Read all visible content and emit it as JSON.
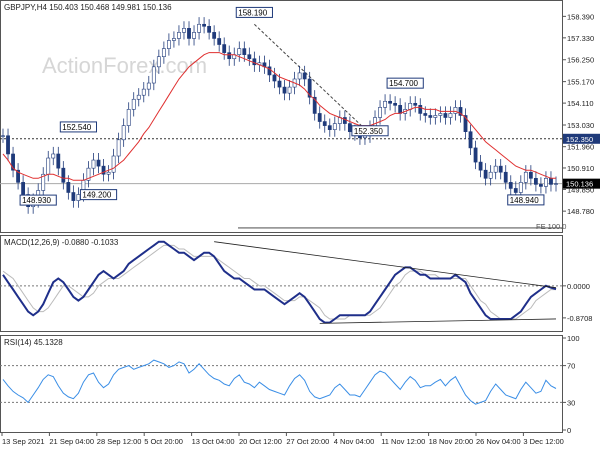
{
  "chart_data": {
    "type": "line",
    "watermark": "ActionForex.com",
    "x_labels": [
      "13 Sep 2021",
      "21 Sep 04:00",
      "28 Sep 12:00",
      "5 Oct 20:00",
      "13 Oct 04:00",
      "20 Oct 12:00",
      "27 Oct 20:00",
      "4 Nov 04:00",
      "11 Nov 12:00",
      "18 Nov 20:00",
      "26 Nov 04:00",
      "3 Dec 12:00"
    ],
    "price": {
      "header": "GBPJPY,H4  150.403 150.468 149.981 150.136",
      "ylim": [
        147.8,
        159.0
      ],
      "yticks": [
        "158.390",
        "157.330",
        "156.250",
        "155.170",
        "154.110",
        "153.030",
        "151.960",
        "150.910",
        "149.850",
        "148.780"
      ],
      "current_label": "150.136",
      "level_label": "152.350",
      "level_value": 152.35,
      "fe_label": "FE 100.0",
      "fe_value": 147.95,
      "annotations": [
        {
          "text": "158.190",
          "x": 50,
          "y": 158.19
        },
        {
          "text": "152.540",
          "x": 15,
          "y": 152.54
        },
        {
          "text": "148.930",
          "x": 7,
          "y": 148.93
        },
        {
          "text": "149.200",
          "x": 19,
          "y": 149.2
        },
        {
          "text": "154.700",
          "x": 80,
          "y": 154.7
        },
        {
          "text": "152.350",
          "x": 73,
          "y": 152.35
        },
        {
          "text": "148.940",
          "x": 104,
          "y": 148.94
        }
      ],
      "close": [
        152.5,
        151.6,
        150.8,
        150.2,
        149.6,
        149.0,
        149.3,
        149.8,
        150.6,
        151.4,
        151.6,
        150.9,
        150.2,
        149.7,
        149.3,
        149.6,
        150.3,
        150.9,
        151.3,
        151.0,
        150.6,
        150.7,
        151.5,
        152.3,
        153.0,
        153.8,
        154.3,
        154.5,
        154.8,
        155.1,
        155.9,
        156.4,
        156.8,
        157.2,
        157.3,
        157.6,
        157.8,
        157.3,
        157.6,
        158.0,
        157.9,
        157.6,
        157.3,
        157.0,
        156.6,
        156.3,
        156.5,
        156.8,
        156.5,
        156.3,
        156.0,
        156.1,
        155.9,
        155.5,
        155.2,
        154.9,
        154.6,
        154.9,
        155.3,
        155.6,
        155.3,
        154.4,
        153.6,
        153.2,
        153.0,
        152.8,
        153.1,
        153.4,
        153.1,
        152.7,
        152.6,
        152.4,
        152.5,
        152.9,
        153.4,
        153.9,
        154.2,
        154.1,
        154.0,
        153.6,
        153.8,
        154.1,
        154.0,
        153.6,
        153.5,
        153.4,
        153.5,
        153.6,
        153.4,
        153.6,
        153.9,
        153.5,
        152.7,
        151.9,
        151.2,
        150.8,
        150.4,
        150.7,
        151.0,
        150.7,
        150.2,
        149.9,
        149.7,
        150.2,
        150.7,
        150.4,
        150.1,
        150.0,
        150.4,
        150.1,
        150.136
      ],
      "ma": [
        151.6,
        151.3,
        150.9,
        150.7,
        150.6,
        150.5,
        150.4,
        150.4,
        150.5,
        150.6,
        150.6,
        150.5,
        150.4,
        150.4,
        150.3,
        150.3,
        150.3,
        150.4,
        150.5,
        150.6,
        150.7,
        150.8,
        150.9,
        151.1,
        151.3,
        151.6,
        151.9,
        152.2,
        152.6,
        152.9,
        153.3,
        153.7,
        154.1,
        154.5,
        154.9,
        155.3,
        155.6,
        155.9,
        156.1,
        156.3,
        156.5,
        156.6,
        156.6,
        156.6,
        156.5,
        156.5,
        156.5,
        156.4,
        156.3,
        156.2,
        156.1,
        156.0,
        155.9,
        155.8,
        155.6,
        155.4,
        155.3,
        155.2,
        155.1,
        155.0,
        154.8,
        154.5,
        154.3,
        154.0,
        153.8,
        153.6,
        153.5,
        153.4,
        153.3,
        153.2,
        153.1,
        153.0,
        153.0,
        153.0,
        153.1,
        153.2,
        153.3,
        153.5,
        153.6,
        153.6,
        153.7,
        153.8,
        153.9,
        153.9,
        153.8,
        153.8,
        153.8,
        153.7,
        153.7,
        153.7,
        153.7,
        153.6,
        153.4,
        153.1,
        152.8,
        152.5,
        152.2,
        152.0,
        151.8,
        151.6,
        151.4,
        151.2,
        151.0,
        150.9,
        150.8,
        150.8,
        150.7,
        150.6,
        150.5,
        150.4,
        150.4
      ]
    },
    "macd": {
      "header": "MACD(12,26,9)  -0.0880 -0.1033",
      "ylim": [
        -1.2,
        1.3
      ],
      "yticks": [
        "0.0000",
        "-0.8708"
      ],
      "yticks_v": [
        0,
        -0.8708
      ],
      "macd": [
        0.3,
        0.1,
        -0.1,
        -0.3,
        -0.5,
        -0.7,
        -0.8,
        -0.7,
        -0.5,
        -0.2,
        0.1,
        0.2,
        0.1,
        -0.1,
        -0.3,
        -0.4,
        -0.3,
        -0.1,
        0.1,
        0.3,
        0.4,
        0.3,
        0.2,
        0.3,
        0.4,
        0.6,
        0.7,
        0.8,
        0.9,
        1.0,
        1.1,
        1.2,
        1.2,
        1.1,
        1.0,
        0.9,
        0.9,
        0.8,
        0.7,
        0.8,
        0.9,
        0.9,
        0.8,
        0.6,
        0.4,
        0.3,
        0.2,
        0.2,
        0.1,
        0.0,
        -0.1,
        -0.1,
        -0.1,
        -0.2,
        -0.3,
        -0.4,
        -0.5,
        -0.4,
        -0.3,
        -0.2,
        -0.3,
        -0.5,
        -0.7,
        -0.9,
        -1.0,
        -1.0,
        -0.9,
        -0.8,
        -0.8,
        -0.8,
        -0.8,
        -0.8,
        -0.8,
        -0.7,
        -0.5,
        -0.3,
        -0.1,
        0.1,
        0.3,
        0.4,
        0.5,
        0.5,
        0.4,
        0.3,
        0.3,
        0.2,
        0.2,
        0.2,
        0.2,
        0.2,
        0.3,
        0.2,
        0.1,
        -0.2,
        -0.4,
        -0.6,
        -0.8,
        -0.9,
        -0.9,
        -0.9,
        -0.9,
        -0.9,
        -0.8,
        -0.7,
        -0.5,
        -0.3,
        -0.2,
        -0.1,
        0.0,
        -0.05,
        -0.088
      ],
      "signal": [
        0.4,
        0.3,
        0.2,
        0.0,
        -0.2,
        -0.4,
        -0.6,
        -0.7,
        -0.7,
        -0.6,
        -0.4,
        -0.2,
        0.0,
        0.0,
        -0.1,
        -0.2,
        -0.3,
        -0.3,
        -0.2,
        0.0,
        0.1,
        0.2,
        0.2,
        0.2,
        0.3,
        0.4,
        0.5,
        0.6,
        0.7,
        0.8,
        0.9,
        1.0,
        1.1,
        1.1,
        1.1,
        1.0,
        1.0,
        0.9,
        0.8,
        0.8,
        0.8,
        0.8,
        0.8,
        0.7,
        0.6,
        0.5,
        0.4,
        0.3,
        0.2,
        0.2,
        0.1,
        0.0,
        0.0,
        -0.1,
        -0.2,
        -0.3,
        -0.4,
        -0.4,
        -0.4,
        -0.3,
        -0.3,
        -0.4,
        -0.5,
        -0.6,
        -0.8,
        -0.9,
        -0.9,
        -0.9,
        -0.9,
        -0.8,
        -0.8,
        -0.8,
        -0.8,
        -0.8,
        -0.7,
        -0.6,
        -0.4,
        -0.2,
        0.0,
        0.1,
        0.3,
        0.4,
        0.4,
        0.4,
        0.3,
        0.3,
        0.3,
        0.2,
        0.2,
        0.2,
        0.2,
        0.2,
        0.2,
        0.0,
        -0.2,
        -0.4,
        -0.5,
        -0.7,
        -0.8,
        -0.9,
        -0.9,
        -0.9,
        -0.9,
        -0.8,
        -0.7,
        -0.6,
        -0.4,
        -0.3,
        -0.2,
        -0.1,
        -0.1033
      ]
    },
    "rsi": {
      "header": "RSI(14) 45.1328",
      "ylim": [
        0,
        100
      ],
      "yticks": [
        "100",
        "70",
        "30",
        "0"
      ],
      "yticks_v": [
        100,
        70,
        30,
        0
      ],
      "values": [
        55,
        48,
        42,
        38,
        35,
        30,
        38,
        46,
        55,
        60,
        58,
        48,
        40,
        36,
        34,
        40,
        52,
        60,
        62,
        52,
        46,
        50,
        60,
        66,
        68,
        70,
        66,
        68,
        70,
        72,
        76,
        74,
        72,
        68,
        70,
        74,
        72,
        62,
        66,
        72,
        66,
        60,
        56,
        54,
        50,
        48,
        56,
        60,
        52,
        50,
        46,
        52,
        48,
        44,
        42,
        40,
        38,
        48,
        56,
        60,
        54,
        42,
        36,
        34,
        36,
        38,
        46,
        50,
        44,
        38,
        38,
        36,
        44,
        52,
        60,
        64,
        62,
        56,
        50,
        44,
        52,
        58,
        54,
        46,
        48,
        48,
        52,
        55,
        48,
        54,
        58,
        48,
        38,
        32,
        28,
        30,
        32,
        42,
        50,
        44,
        38,
        36,
        34,
        44,
        52,
        46,
        40,
        42,
        54,
        48,
        45.13
      ]
    }
  }
}
